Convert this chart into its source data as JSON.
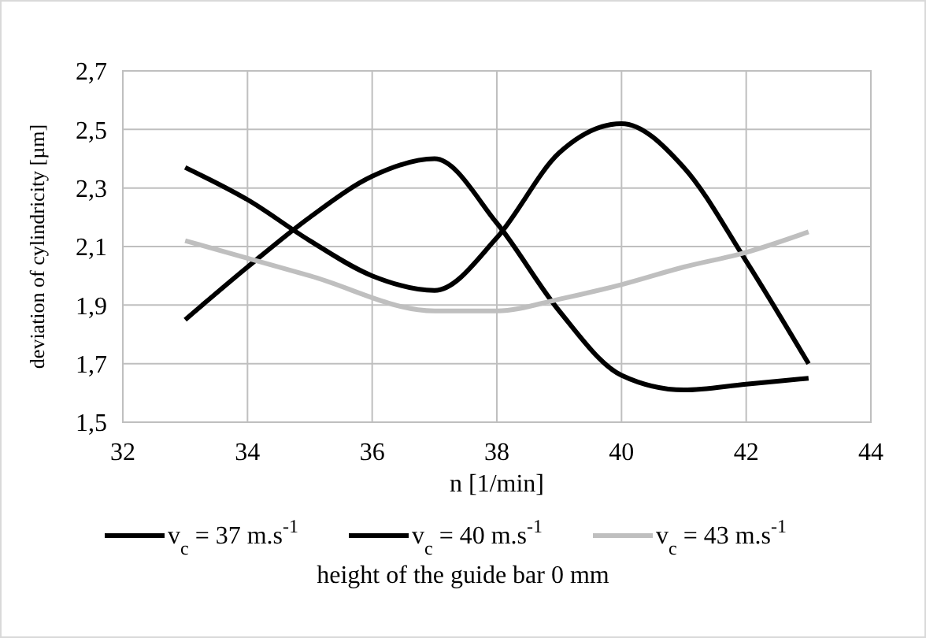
{
  "chart_data": {
    "type": "line",
    "xlabel": "n [1/min]",
    "ylabel": "deviation of cylindricity [µm]",
    "xlim": [
      32,
      44
    ],
    "xticks": [
      32,
      34,
      36,
      38,
      40,
      42,
      44
    ],
    "ylim": [
      1.5,
      2.7
    ],
    "yticks": [
      {
        "value": 1.5,
        "label": "1,5"
      },
      {
        "value": 1.7,
        "label": "1,7"
      },
      {
        "value": 1.9,
        "label": "1,9"
      },
      {
        "value": 2.1,
        "label": "2,1"
      },
      {
        "value": 2.3,
        "label": "2,3"
      },
      {
        "value": 2.5,
        "label": "2,5"
      },
      {
        "value": 2.7,
        "label": "2,7"
      }
    ],
    "grid": true,
    "legend": "bottom",
    "marker": "none",
    "line_style": "solid",
    "series": [
      {
        "name": "v$_{c}$ = 37 m.s$^{-1}$",
        "color": "#000000",
        "x": [
          33,
          34,
          35,
          36,
          37,
          38,
          39,
          40,
          41,
          42,
          43
        ],
        "values": [
          2.37,
          2.26,
          2.12,
          2.0,
          1.95,
          2.13,
          2.42,
          2.52,
          2.37,
          2.05,
          1.7
        ]
      },
      {
        "name": "v$_{c}$ = 40 m.s$^{-1}$",
        "color": "#000000",
        "x": [
          33,
          34,
          35,
          36,
          37,
          38,
          39,
          40,
          41,
          42,
          43
        ],
        "values": [
          1.85,
          2.03,
          2.2,
          2.34,
          2.4,
          2.18,
          1.88,
          1.66,
          1.61,
          1.63,
          1.65
        ]
      },
      {
        "name": "v$_{c}$ = 43 m.s$^{-1}$",
        "color": "#bfbfbf",
        "x": [
          33,
          35,
          37,
          38,
          39,
          40,
          41,
          42,
          43
        ],
        "values": [
          2.12,
          2.0,
          1.88,
          1.88,
          1.92,
          1.97,
          2.03,
          2.08,
          2.15
        ]
      }
    ],
    "annotations": [
      "height of the guide bar 0 mm"
    ]
  }
}
